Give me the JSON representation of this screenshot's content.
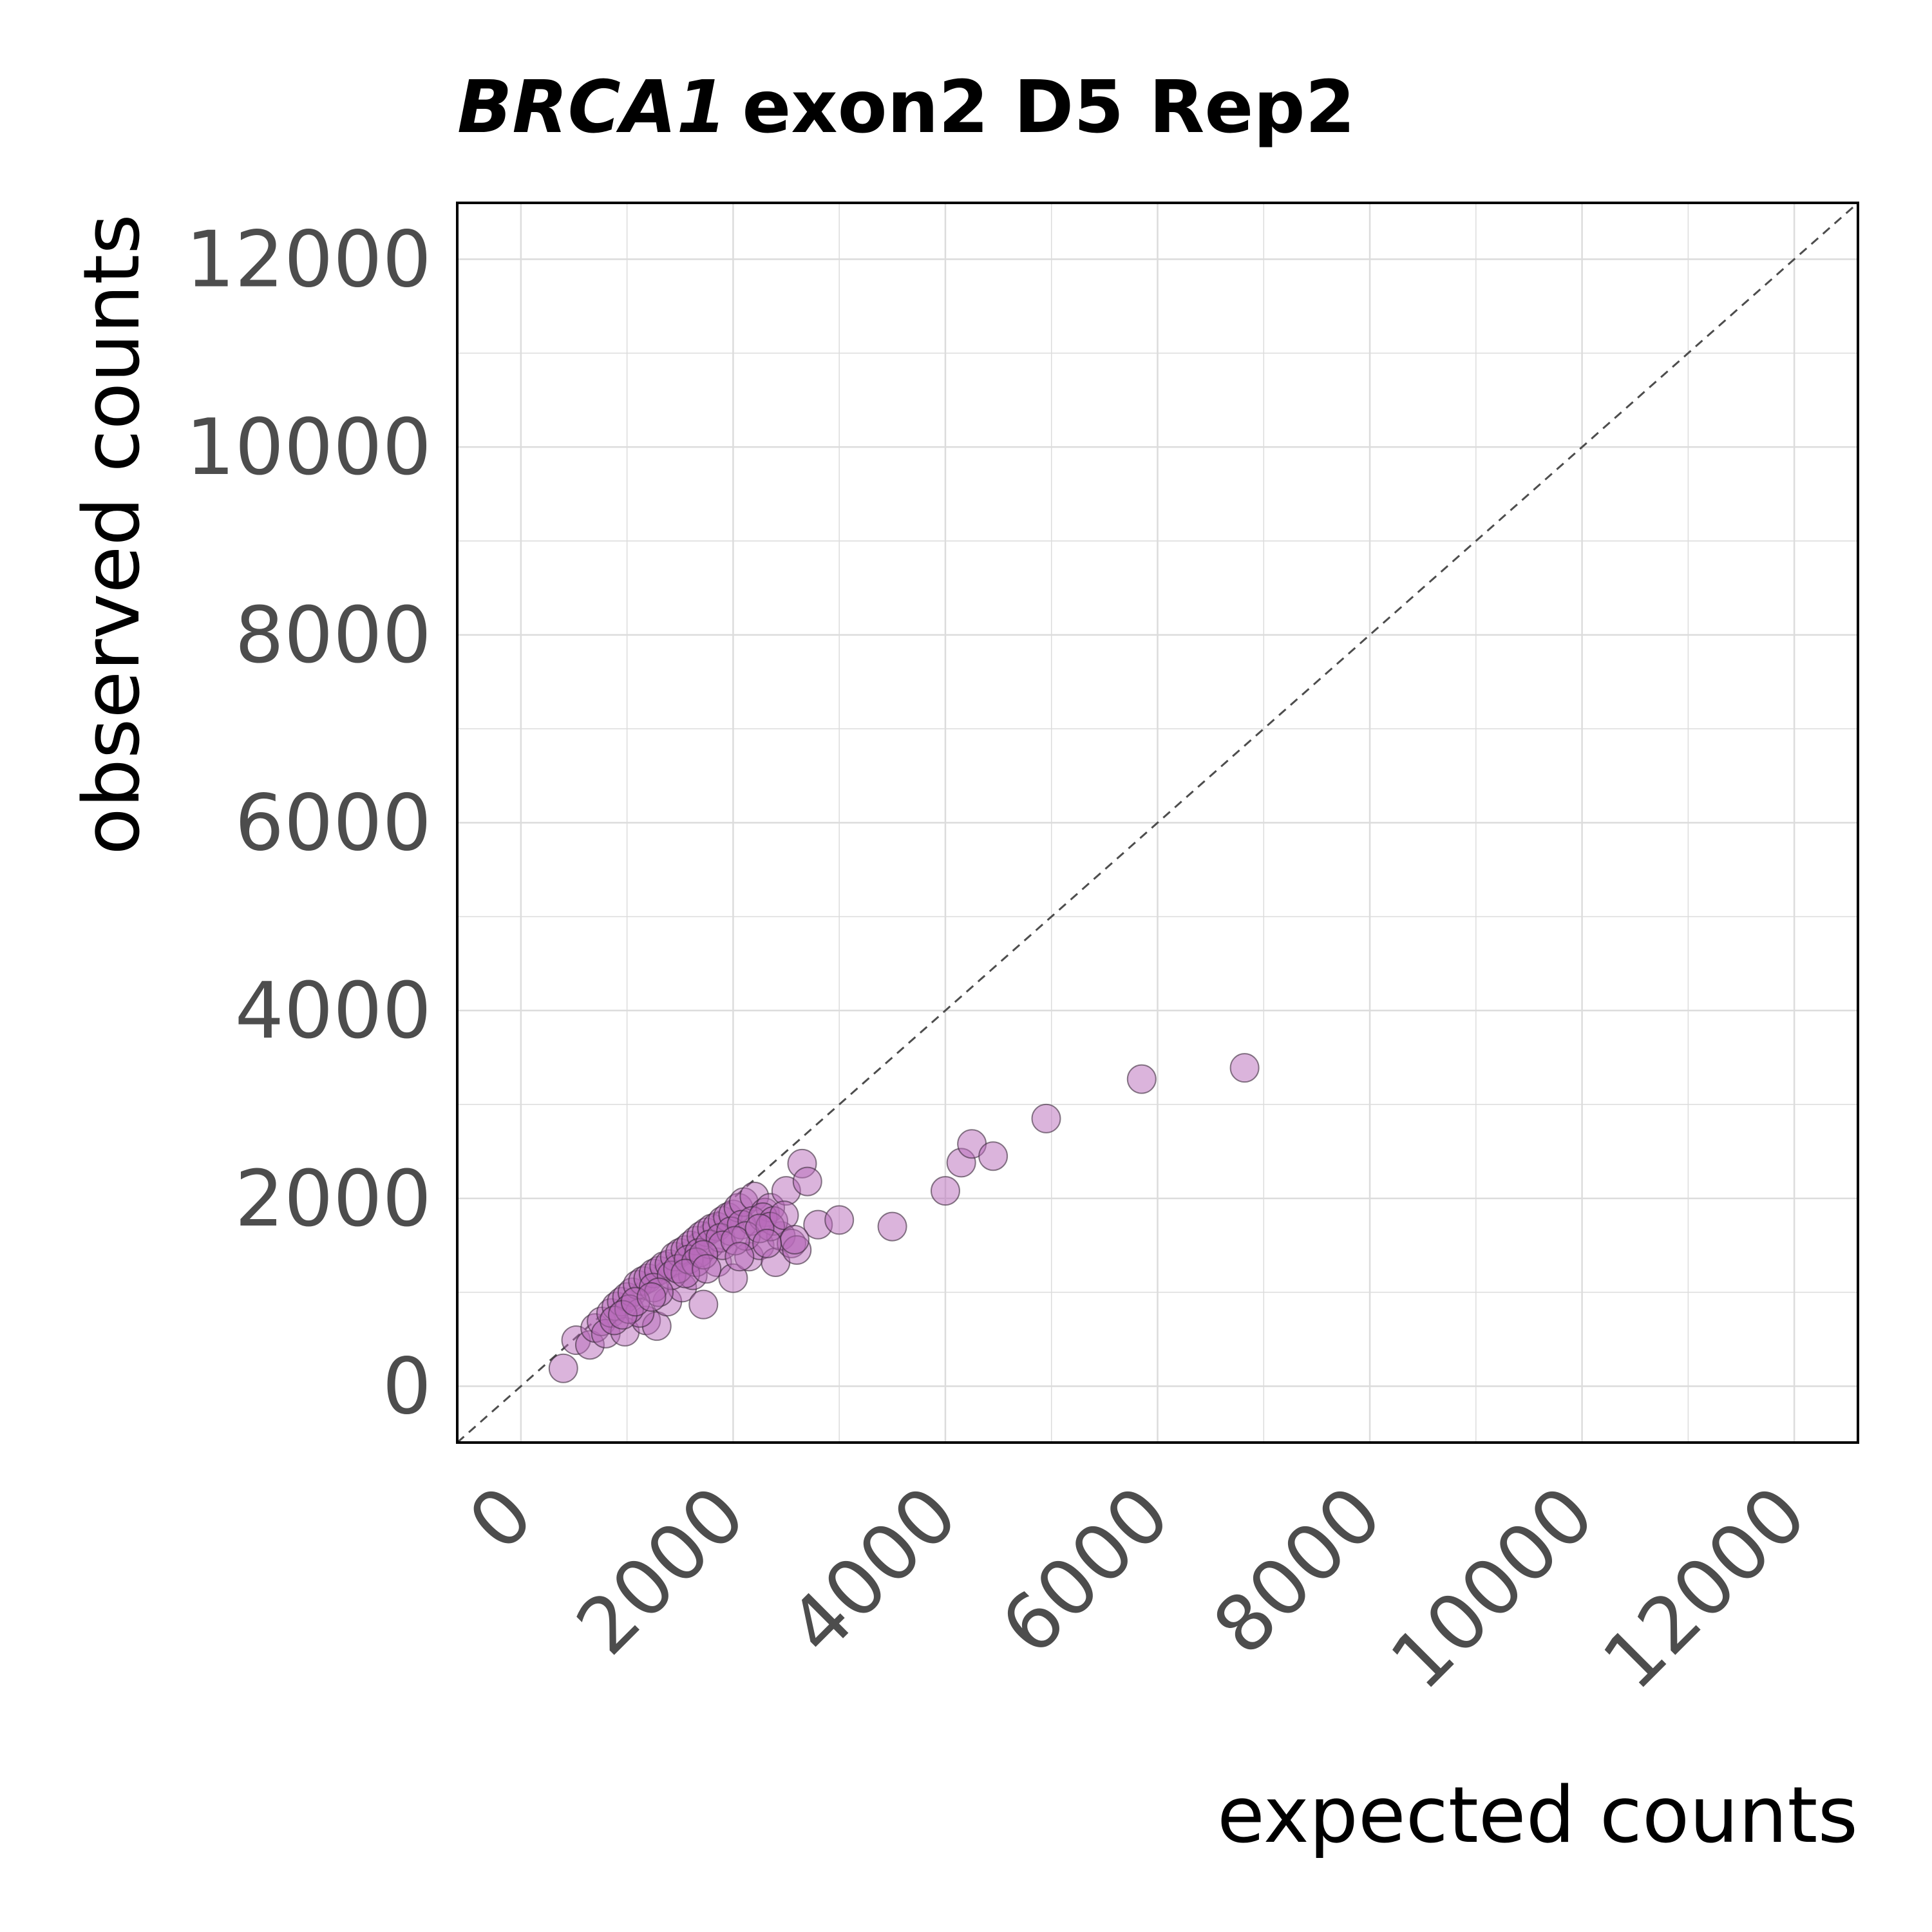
{
  "chart_data": {
    "type": "scatter",
    "title_gene": "BRCA1",
    "title_rest": "exon2 D5 Rep2",
    "xlabel": "expected counts",
    "ylabel": "observed counts",
    "xlim": [
      -600,
      12600
    ],
    "ylim": [
      -600,
      12600
    ],
    "x_ticks": [
      0,
      2000,
      4000,
      6000,
      8000,
      10000,
      12000
    ],
    "y_ticks": [
      0,
      2000,
      4000,
      6000,
      8000,
      10000,
      12000
    ],
    "x_tick_labels": [
      "0",
      "2000",
      "4000",
      "6000",
      "8000",
      "10000",
      "12000"
    ],
    "y_tick_labels": [
      "0",
      "2000",
      "4000",
      "6000",
      "8000",
      "10000",
      "12000"
    ],
    "grid": true,
    "minor_grid": true,
    "diagonal_reference_line": true,
    "colors": {
      "point_fill": "#b86ab9",
      "point_stroke": "#3a2a3a",
      "dense_fill": "#8a3a92",
      "diagonal": "#4d4d4d",
      "grid": "#dcdcdc"
    },
    "series": [
      {
        "points": [
          [
            400,
            190
          ],
          [
            520,
            490
          ],
          [
            650,
            440
          ],
          [
            700,
            620
          ],
          [
            760,
            690
          ],
          [
            800,
            560
          ],
          [
            850,
            780
          ],
          [
            900,
            850
          ],
          [
            950,
            900
          ],
          [
            980,
            580
          ],
          [
            1000,
            950
          ],
          [
            1050,
            1000
          ],
          [
            1100,
            1080
          ],
          [
            1150,
            1120
          ],
          [
            1180,
            700
          ],
          [
            1200,
            1150
          ],
          [
            1250,
            1200
          ],
          [
            1280,
            640
          ],
          [
            1300,
            1230
          ],
          [
            1350,
            1280
          ],
          [
            1380,
            900
          ],
          [
            1400,
            1300
          ],
          [
            1450,
            1380
          ],
          [
            1500,
            1420
          ],
          [
            1520,
            1050
          ],
          [
            1550,
            1450
          ],
          [
            1600,
            1500
          ],
          [
            1620,
            1180
          ],
          [
            1650,
            1550
          ],
          [
            1700,
            1600
          ],
          [
            1720,
            870
          ],
          [
            1750,
            1640
          ],
          [
            1800,
            1680
          ],
          [
            1850,
            1700
          ],
          [
            1850,
            1320
          ],
          [
            1900,
            1760
          ],
          [
            1950,
            1800
          ],
          [
            2000,
            1150
          ],
          [
            2000,
            1830
          ],
          [
            2050,
            1900
          ],
          [
            2100,
            1960
          ],
          [
            2150,
            1380
          ],
          [
            2200,
            2020
          ],
          [
            2250,
            1500
          ],
          [
            2300,
            1850
          ],
          [
            2350,
            1900
          ],
          [
            2400,
            1320
          ],
          [
            2450,
            1600
          ],
          [
            2500,
            2080
          ],
          [
            2550,
            1520
          ],
          [
            2600,
            1450
          ],
          [
            2650,
            2370
          ],
          [
            2700,
            2180
          ],
          [
            2800,
            1720
          ],
          [
            3000,
            1770
          ],
          [
            3500,
            1700
          ],
          [
            4000,
            2080
          ],
          [
            4150,
            2380
          ],
          [
            4250,
            2580
          ],
          [
            4450,
            2450
          ],
          [
            4950,
            2850
          ],
          [
            5850,
            3270
          ],
          [
            6820,
            3390
          ],
          [
            1120,
            780
          ],
          [
            1250,
            1050
          ],
          [
            1420,
            1180
          ],
          [
            1480,
            1250
          ],
          [
            1580,
            1350
          ],
          [
            1680,
            1420
          ],
          [
            1780,
            1510
          ],
          [
            1880,
            1580
          ],
          [
            1980,
            1650
          ],
          [
            2080,
            1720
          ],
          [
            2180,
            1760
          ],
          [
            2280,
            1800
          ],
          [
            2380,
            1760
          ],
          [
            1650,
            1320
          ],
          [
            1900,
            1500
          ],
          [
            2120,
            1600
          ],
          [
            2350,
            1700
          ],
          [
            1300,
            1000
          ],
          [
            1550,
            1200
          ],
          [
            1720,
            1400
          ],
          [
            2020,
            1550
          ],
          [
            2250,
            1680
          ],
          [
            880,
            700
          ],
          [
            1020,
            820
          ],
          [
            2480,
            1820
          ],
          [
            2580,
            1560
          ],
          [
            1750,
            1250
          ],
          [
            2060,
            1380
          ],
          [
            2320,
            1520
          ],
          [
            960,
            760
          ],
          [
            1080,
            900
          ],
          [
            1230,
            950
          ]
        ]
      }
    ]
  }
}
